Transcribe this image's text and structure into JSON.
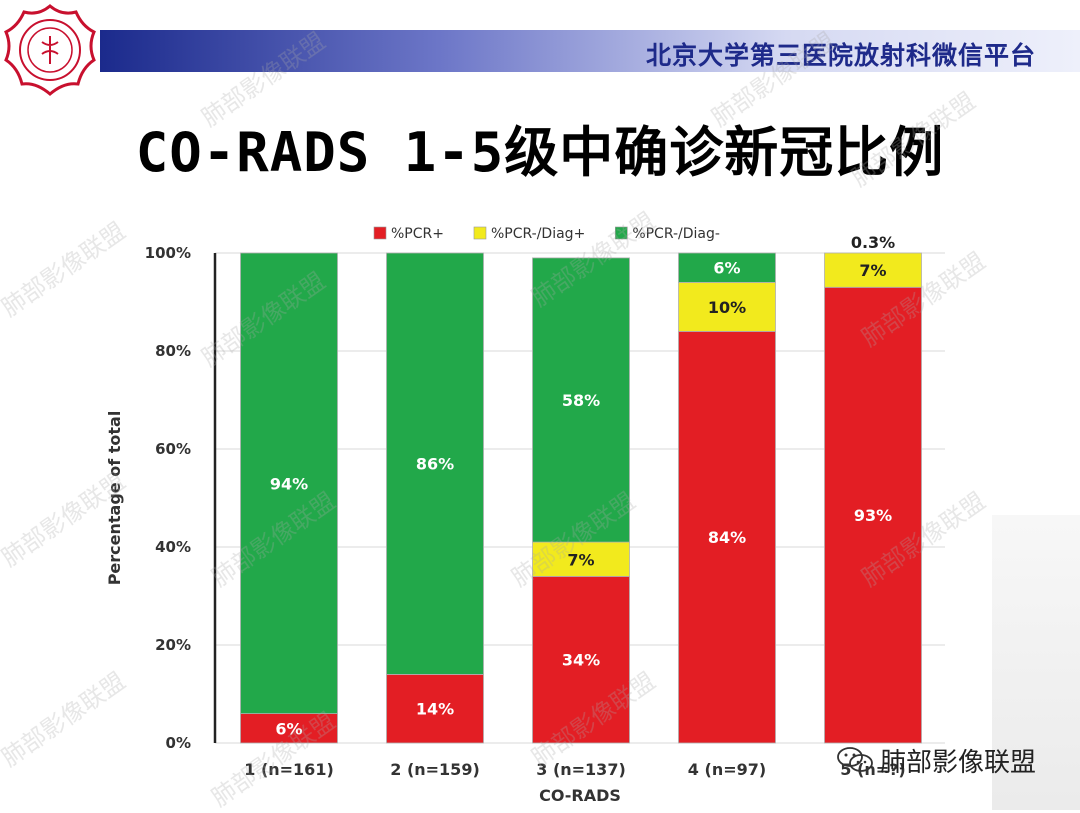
{
  "header": {
    "hospital_name": "北京大学第三医院放射科微信平台",
    "accent_color": "#1b2a8c"
  },
  "logo": {
    "name": "hospital-seal-logo",
    "color": "#c8102e"
  },
  "slide": {
    "title": "CO-RADS 1-5级中确诊新冠比例"
  },
  "watermark": {
    "text": "肺部影像联盟",
    "icon": "wechat-icon"
  },
  "chart_data": {
    "type": "bar",
    "stacked": true,
    "categories": [
      "1 (n=161)",
      "2 (n=159)",
      "3 (n=137)",
      "4 (n=97)",
      "5 (n=?)"
    ],
    "series": [
      {
        "name": "%PCR+",
        "color": "#e31e24",
        "values": [
          6,
          14,
          34,
          84,
          93
        ],
        "labels": [
          "6%",
          "14%",
          "34%",
          "84%",
          "93%"
        ]
      },
      {
        "name": "%PCR-/Diag+",
        "color": "#f2ea1d",
        "values": [
          0,
          0,
          7,
          10,
          7
        ],
        "labels": [
          "",
          "",
          "7%",
          "10%",
          "7%"
        ]
      },
      {
        "name": "%PCR-/Diag-",
        "color": "#22a84a",
        "values": [
          94,
          86,
          58,
          6,
          0.3
        ],
        "labels": [
          "94%",
          "86%",
          "58%",
          "6%",
          "0.3%"
        ]
      }
    ],
    "xlabel": "CO-RADS",
    "ylabel": "Percentage of total",
    "yticks": [
      "0%",
      "20%",
      "40%",
      "60%",
      "80%",
      "100%"
    ],
    "ylim": [
      0,
      100
    ],
    "grid": true,
    "legend_position": "top"
  }
}
